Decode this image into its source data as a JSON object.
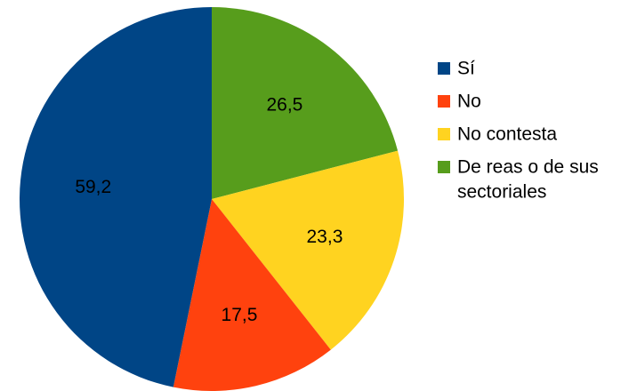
{
  "chart_data": {
    "type": "pie",
    "slices": [
      {
        "label": "Sí",
        "value": 59.2,
        "value_label": "59,2",
        "color": "#004586"
      },
      {
        "label": "No",
        "value": 17.5,
        "value_label": "17,5",
        "color": "#ff420e"
      },
      {
        "label": "No contesta",
        "value": 23.3,
        "value_label": "23,3",
        "color": "#ffd320"
      },
      {
        "label": "De reas o de sus sectoriales",
        "value": 26.5,
        "value_label": "26,5",
        "color": "#579d1c"
      }
    ],
    "legend": {
      "placement": "right",
      "entries": [
        {
          "label_lines": [
            "Sí"
          ]
        },
        {
          "label_lines": [
            "No"
          ]
        },
        {
          "label_lines": [
            "No contesta"
          ]
        },
        {
          "label_lines": [
            "De reas o de sus",
            "sectoriales"
          ]
        }
      ]
    },
    "start_angle_deg": 0,
    "direction": "clockwise"
  }
}
